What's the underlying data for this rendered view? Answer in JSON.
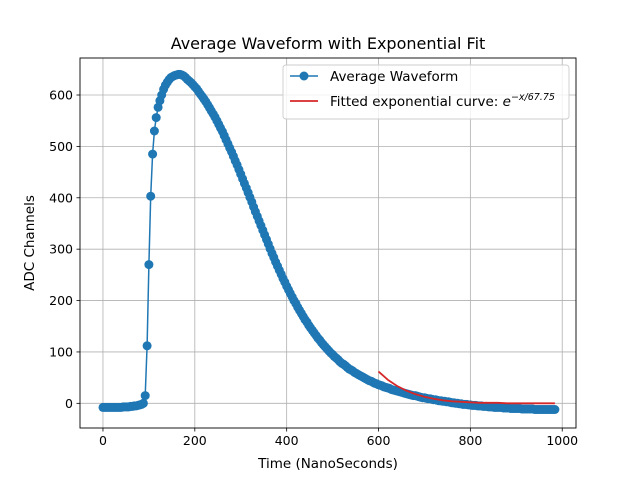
{
  "chart_data": {
    "type": "line",
    "title": "Average Waveform with Exponential Fit",
    "xlabel": "Time (NanoSeconds)",
    "ylabel": "ADC Channels",
    "xlim": [
      -50,
      1030
    ],
    "ylim": [
      -48,
      672
    ],
    "xticks": [
      0,
      200,
      400,
      600,
      800,
      1000
    ],
    "yticks": [
      0,
      100,
      200,
      300,
      400,
      500,
      600
    ],
    "grid": true,
    "legend_position": "top-right",
    "colors": {
      "waveform": "#1f77b4",
      "fit": "#d62728"
    },
    "waveform_points": [
      [
        0,
        -8
      ],
      [
        4,
        -8
      ],
      [
        8,
        -8
      ],
      [
        12,
        -8
      ],
      [
        16,
        -8
      ],
      [
        20,
        -8
      ],
      [
        24,
        -8
      ],
      [
        28,
        -8
      ],
      [
        32,
        -8
      ],
      [
        36,
        -8
      ],
      [
        40,
        -8
      ],
      [
        44,
        -7
      ],
      [
        48,
        -7
      ],
      [
        52,
        -7
      ],
      [
        56,
        -7
      ],
      [
        60,
        -6
      ],
      [
        64,
        -6
      ],
      [
        68,
        -5
      ],
      [
        72,
        -5
      ],
      [
        76,
        -4
      ],
      [
        80,
        -3
      ],
      [
        84,
        -2
      ],
      [
        88,
        0
      ],
      [
        92,
        15
      ],
      [
        96,
        112
      ],
      [
        100,
        270
      ],
      [
        104,
        403
      ],
      [
        108,
        485
      ],
      [
        112,
        530
      ],
      [
        116,
        556
      ],
      [
        120,
        576
      ],
      [
        124,
        589
      ],
      [
        128,
        600
      ],
      [
        132,
        611
      ],
      [
        136,
        619
      ],
      [
        140,
        625
      ],
      [
        144,
        630
      ],
      [
        148,
        634
      ],
      [
        152,
        636
      ],
      [
        156,
        638
      ],
      [
        160,
        639
      ],
      [
        164,
        640
      ],
      [
        168,
        640
      ],
      [
        172,
        639
      ],
      [
        176,
        637
      ],
      [
        180,
        634
      ],
      [
        184,
        630
      ],
      [
        188,
        627
      ],
      [
        192,
        624
      ],
      [
        196,
        620
      ],
      [
        200,
        616
      ],
      [
        204,
        612
      ],
      [
        208,
        607
      ],
      [
        212,
        602
      ],
      [
        216,
        597
      ],
      [
        220,
        592
      ],
      [
        224,
        587
      ],
      [
        228,
        581
      ],
      [
        232,
        575
      ],
      [
        236,
        569
      ],
      [
        240,
        563
      ],
      [
        244,
        557
      ],
      [
        248,
        550
      ],
      [
        252,
        543
      ],
      [
        256,
        536
      ],
      [
        260,
        529
      ],
      [
        264,
        521
      ],
      [
        268,
        513
      ],
      [
        272,
        505
      ],
      [
        276,
        497
      ],
      [
        280,
        489
      ],
      [
        284,
        481
      ],
      [
        288,
        472
      ],
      [
        292,
        464
      ],
      [
        296,
        455
      ],
      [
        300,
        446
      ],
      [
        304,
        437
      ],
      [
        308,
        428
      ],
      [
        312,
        419
      ],
      [
        316,
        410
      ],
      [
        320,
        401
      ],
      [
        324,
        392
      ],
      [
        328,
        382
      ],
      [
        332,
        373
      ],
      [
        336,
        364
      ],
      [
        340,
        355
      ],
      [
        344,
        346
      ],
      [
        348,
        337
      ],
      [
        352,
        328
      ],
      [
        356,
        319
      ],
      [
        360,
        310
      ],
      [
        364,
        301
      ],
      [
        368,
        292
      ],
      [
        372,
        284
      ],
      [
        376,
        275
      ],
      [
        380,
        267
      ],
      [
        384,
        259
      ],
      [
        388,
        251
      ],
      [
        392,
        243
      ],
      [
        396,
        236
      ],
      [
        400,
        228
      ],
      [
        404,
        221
      ],
      [
        408,
        214
      ],
      [
        412,
        207
      ],
      [
        416,
        200
      ],
      [
        420,
        194
      ],
      [
        424,
        187
      ],
      [
        428,
        181
      ],
      [
        432,
        175
      ],
      [
        436,
        169
      ],
      [
        440,
        163
      ],
      [
        444,
        158
      ],
      [
        448,
        152
      ],
      [
        452,
        147
      ],
      [
        456,
        142
      ],
      [
        460,
        137
      ],
      [
        464,
        132
      ],
      [
        468,
        127
      ],
      [
        472,
        123
      ],
      [
        476,
        118
      ],
      [
        480,
        114
      ],
      [
        484,
        110
      ],
      [
        488,
        106
      ],
      [
        492,
        102
      ],
      [
        496,
        98
      ],
      [
        500,
        95
      ],
      [
        504,
        91
      ],
      [
        508,
        88
      ],
      [
        512,
        85
      ],
      [
        516,
        81
      ],
      [
        520,
        78
      ],
      [
        524,
        76
      ],
      [
        528,
        73
      ],
      [
        532,
        70
      ],
      [
        536,
        67
      ],
      [
        540,
        65
      ],
      [
        544,
        63
      ],
      [
        548,
        60
      ],
      [
        552,
        58
      ],
      [
        556,
        56
      ],
      [
        560,
        54
      ],
      [
        564,
        52
      ],
      [
        568,
        50
      ],
      [
        572,
        48
      ],
      [
        576,
        46
      ],
      [
        580,
        44
      ],
      [
        584,
        43
      ],
      [
        588,
        41
      ],
      [
        592,
        39
      ],
      [
        596,
        38
      ],
      [
        600,
        36
      ],
      [
        604,
        35
      ],
      [
        608,
        34
      ],
      [
        612,
        32
      ],
      [
        616,
        31
      ],
      [
        620,
        30
      ],
      [
        624,
        29
      ],
      [
        628,
        27
      ],
      [
        632,
        26
      ],
      [
        636,
        25
      ],
      [
        640,
        24
      ],
      [
        644,
        23
      ],
      [
        648,
        22
      ],
      [
        652,
        21
      ],
      [
        656,
        20
      ],
      [
        660,
        19
      ],
      [
        664,
        18
      ],
      [
        668,
        17
      ],
      [
        672,
        16
      ],
      [
        676,
        15
      ],
      [
        680,
        15
      ],
      [
        684,
        14
      ],
      [
        688,
        13
      ],
      [
        692,
        12
      ],
      [
        696,
        11
      ],
      [
        700,
        11
      ],
      [
        704,
        10
      ],
      [
        708,
        9
      ],
      [
        712,
        9
      ],
      [
        716,
        8
      ],
      [
        720,
        7
      ],
      [
        724,
        7
      ],
      [
        728,
        6
      ],
      [
        732,
        5
      ],
      [
        736,
        5
      ],
      [
        740,
        4
      ],
      [
        744,
        4
      ],
      [
        748,
        3
      ],
      [
        752,
        3
      ],
      [
        756,
        2
      ],
      [
        760,
        1
      ],
      [
        764,
        1
      ],
      [
        768,
        0
      ],
      [
        772,
        0
      ],
      [
        776,
        -1
      ],
      [
        780,
        -1
      ],
      [
        784,
        -2
      ],
      [
        788,
        -2
      ],
      [
        792,
        -2
      ],
      [
        796,
        -3
      ],
      [
        800,
        -3
      ],
      [
        804,
        -4
      ],
      [
        808,
        -4
      ],
      [
        812,
        -4
      ],
      [
        816,
        -5
      ],
      [
        820,
        -5
      ],
      [
        824,
        -5
      ],
      [
        828,
        -6
      ],
      [
        832,
        -6
      ],
      [
        836,
        -6
      ],
      [
        840,
        -7
      ],
      [
        844,
        -7
      ],
      [
        848,
        -7
      ],
      [
        852,
        -8
      ],
      [
        856,
        -8
      ],
      [
        860,
        -8
      ],
      [
        864,
        -8
      ],
      [
        868,
        -8
      ],
      [
        872,
        -9
      ],
      [
        876,
        -9
      ],
      [
        880,
        -9
      ],
      [
        884,
        -9
      ],
      [
        888,
        -10
      ],
      [
        892,
        -10
      ],
      [
        896,
        -10
      ],
      [
        900,
        -10
      ],
      [
        904,
        -10
      ],
      [
        908,
        -10
      ],
      [
        912,
        -11
      ],
      [
        916,
        -11
      ],
      [
        920,
        -11
      ],
      [
        924,
        -11
      ],
      [
        928,
        -11
      ],
      [
        932,
        -11
      ],
      [
        936,
        -11
      ],
      [
        940,
        -12
      ],
      [
        944,
        -12
      ],
      [
        948,
        -12
      ],
      [
        952,
        -12
      ],
      [
        956,
        -12
      ],
      [
        960,
        -12
      ],
      [
        964,
        -12
      ],
      [
        968,
        -12
      ],
      [
        972,
        -12
      ],
      [
        976,
        -12
      ],
      [
        980,
        -12
      ],
      [
        984,
        -12
      ]
    ],
    "fit_points": [
      [
        600,
        62
      ],
      [
        620,
        46
      ],
      [
        640,
        34
      ],
      [
        660,
        25
      ],
      [
        680,
        18
      ],
      [
        700,
        13
      ],
      [
        720,
        9
      ],
      [
        740,
        6
      ],
      [
        760,
        4
      ],
      [
        780,
        3
      ],
      [
        800,
        2
      ],
      [
        820,
        1
      ],
      [
        840,
        1
      ],
      [
        860,
        1
      ],
      [
        880,
        0
      ],
      [
        900,
        0
      ],
      [
        920,
        0
      ],
      [
        940,
        0
      ],
      [
        960,
        0
      ],
      [
        984,
        0
      ]
    ],
    "legend": {
      "waveform_label": "Average Waveform",
      "fit_label_prefix": "Fitted exponential curve: ",
      "fit_label_base": "e",
      "fit_label_exponent": "−x/67.75"
    }
  }
}
